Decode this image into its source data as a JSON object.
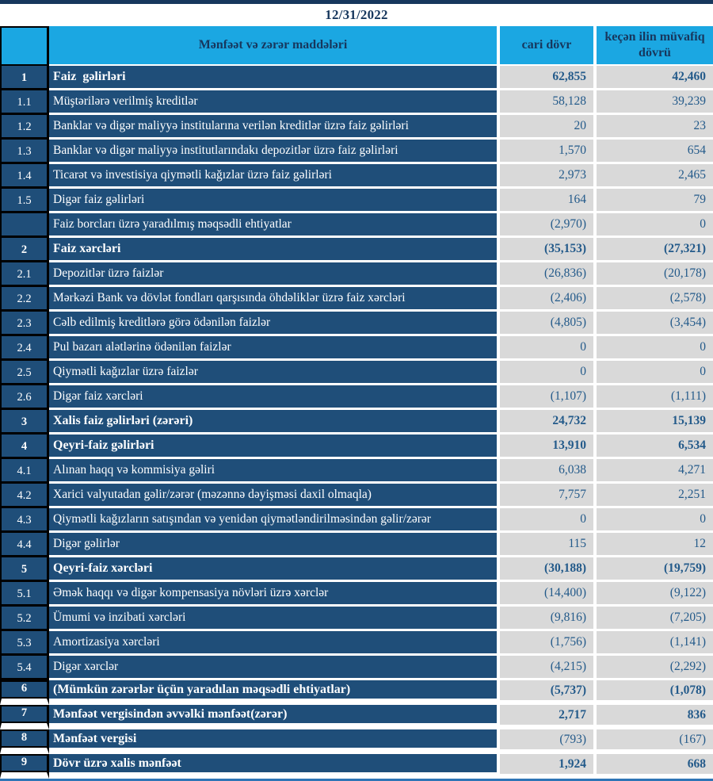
{
  "title": "12/31/2022",
  "table": {
    "headers": {
      "items": "Mənfəət və zərər maddələri",
      "current": "cari dövr",
      "previous": "keçən ilin müvafiq dövrü"
    },
    "rows": [
      {
        "num": "1",
        "label": "Faiz  gəlirləri",
        "current": "62,855",
        "previous": "42,460",
        "section": true
      },
      {
        "num": "1.1",
        "label": "Müştərilərə verilmiş kreditlər",
        "current": "58,128",
        "previous": "39,239"
      },
      {
        "num": "1.2",
        "label": "Banklar və digər maliyyə institularına verilən kreditlər üzrə faiz gəlirləri",
        "current": "20",
        "previous": "23"
      },
      {
        "num": "1.3",
        "label": "Banklar və digər maliyyə institutlarındakı depozitlər üzrə faiz gəlirləri",
        "current": "1,570",
        "previous": "654"
      },
      {
        "num": "1.4",
        "label": "Ticarət və investisiya qiymətli kağızlar üzrə faiz gəlirləri",
        "current": "2,973",
        "previous": "2,465"
      },
      {
        "num": "1.5",
        "label": "Digər faiz gəlirləri",
        "current": "164",
        "previous": "79"
      },
      {
        "num": "",
        "label": "Faiz borcları üzrə yaradılmış məqsədli ehtiyatlar",
        "current": "(2,970)",
        "previous": "0"
      },
      {
        "num": "2",
        "label": "Faiz xərcləri",
        "current": "(35,153)",
        "previous": "(27,321)",
        "section": true
      },
      {
        "num": "2.1",
        "label": "Depozitlər üzrə faizlər",
        "current": "(26,836)",
        "previous": "(20,178)"
      },
      {
        "num": "2.2",
        "label": "Mərkəzi Bank və dövlət fondları qarşısında öhdəliklər üzrə faiz xərcləri",
        "current": "(2,406)",
        "previous": "(2,578)"
      },
      {
        "num": "2.3",
        "label": "Cəlb edilmiş kreditlərə görə ödənilən faizlər",
        "current": "(4,805)",
        "previous": "(3,454)"
      },
      {
        "num": "2.4",
        "label": "Pul bazarı alətlərinə ödənilən faizlər",
        "current": "0",
        "previous": "0"
      },
      {
        "num": "2.5",
        "label": "Qiymətli kağızlar üzrə faizlər",
        "current": "0",
        "previous": "0"
      },
      {
        "num": "2.6",
        "label": "Digər faiz xərcləri",
        "current": "(1,107)",
        "previous": "(1,111)"
      },
      {
        "num": "3",
        "label": "Xalis faiz gəlirləri (zərəri)",
        "current": "24,732",
        "previous": "15,139",
        "section": true
      },
      {
        "num": "4",
        "label": "Qeyri-faiz gəlirləri",
        "current": "13,910",
        "previous": "6,534",
        "section": true
      },
      {
        "num": "4.1",
        "label": "Alınan haqq və kommisiya gəliri",
        "current": "6,038",
        "previous": "4,271"
      },
      {
        "num": "4.2",
        "label": "Xarici valyutadan gəlir/zərər (məzənnə dəyişməsi daxil olmaqla)",
        "current": "7,757",
        "previous": "2,251"
      },
      {
        "num": "4.3",
        "label": "Qiymətli kağızların satışından və yenidən qiymətləndirilməsindən gəlir/zərər",
        "current": "0",
        "previous": "0"
      },
      {
        "num": "4.4",
        "label": "Digər gəlirlər",
        "current": "115",
        "previous": "12"
      },
      {
        "num": "5",
        "label": "Qeyri-faiz xərcləri",
        "current": "(30,188)",
        "previous": "(19,759)",
        "section": true
      },
      {
        "num": "5.1",
        "label": "Əmək haqqı və digər kompensasiya növləri üzrə xərclər",
        "current": "(14,400)",
        "previous": "(9,122)"
      },
      {
        "num": "5.2",
        "label": "Ümumi və inzibati xərcləri",
        "current": "(9,816)",
        "previous": "(7,205)"
      },
      {
        "num": "5.3",
        "label": "Amortizasiya xərcləri",
        "current": "(1,756)",
        "previous": "(1,141)"
      },
      {
        "num": "5.4",
        "label": "Digər xərclər",
        "current": "(4,215)",
        "previous": "(2,292)"
      },
      {
        "num": "6",
        "label": "(Mümkün zərərlər üçün yaradılan məqsədli ehtiyatlar)",
        "current": "(5,737)",
        "previous": "(1,078)",
        "section": true,
        "gappy": true
      },
      {
        "num": "7",
        "label": "Mənfəət vergisindən əvvəlki mənfəət(zərər)",
        "current": "2,717",
        "previous": "836",
        "section": true,
        "gappy": true
      },
      {
        "num": "8",
        "label": "Mənfəət vergisi",
        "current": "(793)",
        "previous": "(167)",
        "section": true,
        "gappy": true,
        "plain_values": true
      },
      {
        "num": "9",
        "label": "Dövr üzrə xalis mənfəət",
        "current": "1,924",
        "previous": "668",
        "section": true,
        "gappy": true
      }
    ]
  },
  "colors": {
    "header_bg": "#1BA7E2",
    "row_bg": "#1F4E79",
    "value_bg": "#D9D9D9",
    "value_text": "#235A8A",
    "header_text": "#17375D",
    "title_text": "#17375D",
    "top_bar": "#17375D",
    "bottom_bar": "#2E75B6",
    "row_text": "#FFFFFF",
    "border_black": "#000000"
  }
}
